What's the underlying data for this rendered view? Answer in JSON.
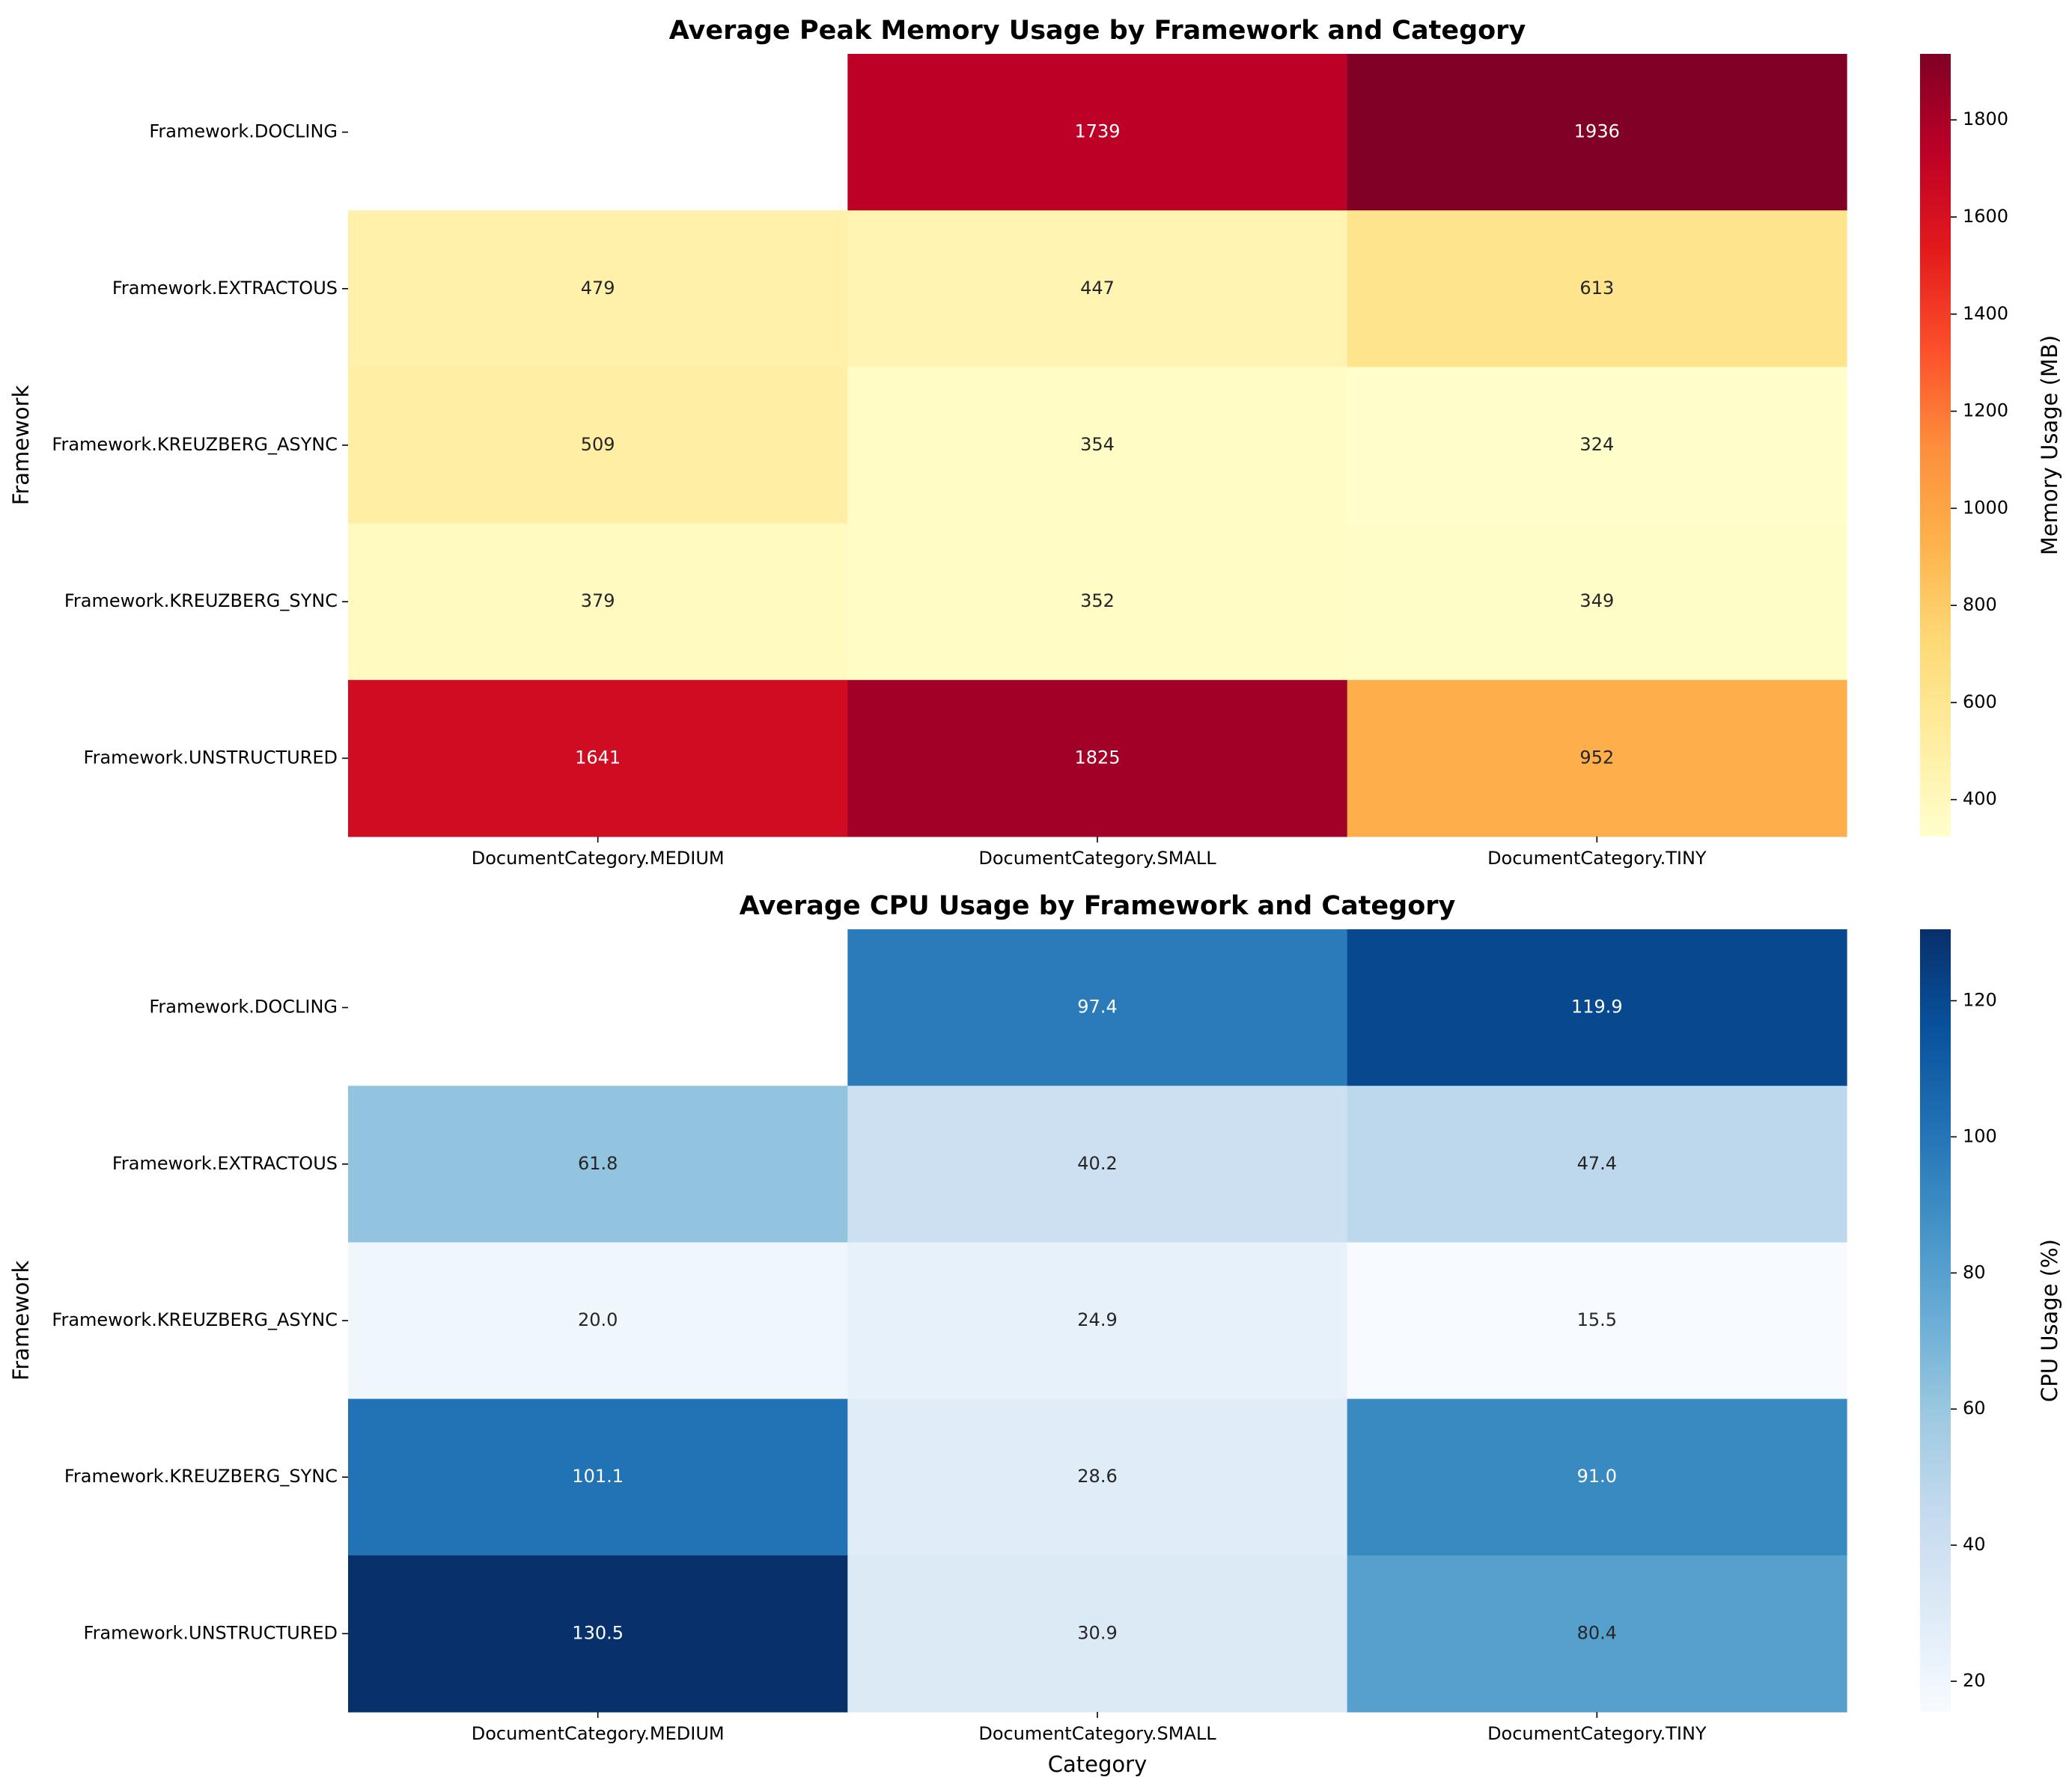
{
  "chart_data": [
    {
      "type": "heatmap",
      "title": "Average Peak Memory Usage by Framework and Category",
      "xlabel": "",
      "ylabel": "Framework",
      "rows": [
        "Framework.DOCLING",
        "Framework.EXTRACTOUS",
        "Framework.KREUZBERG_ASYNC",
        "Framework.KREUZBERG_SYNC",
        "Framework.UNSTRUCTURED"
      ],
      "columns": [
        "DocumentCategory.MEDIUM",
        "DocumentCategory.SMALL",
        "DocumentCategory.TINY"
      ],
      "values": [
        [
          null,
          1739,
          1936
        ],
        [
          479,
          447,
          613
        ],
        [
          509,
          354,
          324
        ],
        [
          379,
          352,
          349
        ],
        [
          1641,
          1825,
          952
        ]
      ],
      "value_labels": [
        [
          "",
          "1739",
          "1936"
        ],
        [
          "479",
          "447",
          "613"
        ],
        [
          "509",
          "354",
          "324"
        ],
        [
          "379",
          "352",
          "349"
        ],
        [
          "1641",
          "1825",
          "952"
        ]
      ],
      "colormap": "YlOrRd",
      "colorbar_label": "Memory Usage (MB)",
      "colorbar_range": [
        324,
        1936
      ],
      "colorbar_ticks": [
        400,
        600,
        800,
        1000,
        1200,
        1400,
        1600,
        1800
      ]
    },
    {
      "type": "heatmap",
      "title": "Average CPU Usage by Framework and Category",
      "xlabel": "Category",
      "ylabel": "Framework",
      "rows": [
        "Framework.DOCLING",
        "Framework.EXTRACTOUS",
        "Framework.KREUZBERG_ASYNC",
        "Framework.KREUZBERG_SYNC",
        "Framework.UNSTRUCTURED"
      ],
      "columns": [
        "DocumentCategory.MEDIUM",
        "DocumentCategory.SMALL",
        "DocumentCategory.TINY"
      ],
      "values": [
        [
          null,
          97.4,
          119.9
        ],
        [
          61.8,
          40.2,
          47.4
        ],
        [
          20.0,
          24.9,
          15.5
        ],
        [
          101.1,
          28.6,
          91.0
        ],
        [
          130.5,
          30.9,
          80.4
        ]
      ],
      "value_labels": [
        [
          "",
          "97.4",
          "119.9"
        ],
        [
          "61.8",
          "40.2",
          "47.4"
        ],
        [
          "20.0",
          "24.9",
          "15.5"
        ],
        [
          "101.1",
          "28.6",
          "91.0"
        ],
        [
          "130.5",
          "30.9",
          "80.4"
        ]
      ],
      "colormap": "Blues",
      "colorbar_label": "CPU Usage (%)",
      "colorbar_range": [
        15.5,
        130.5
      ],
      "colorbar_ticks": [
        20,
        40,
        60,
        80,
        100,
        120
      ]
    }
  ]
}
